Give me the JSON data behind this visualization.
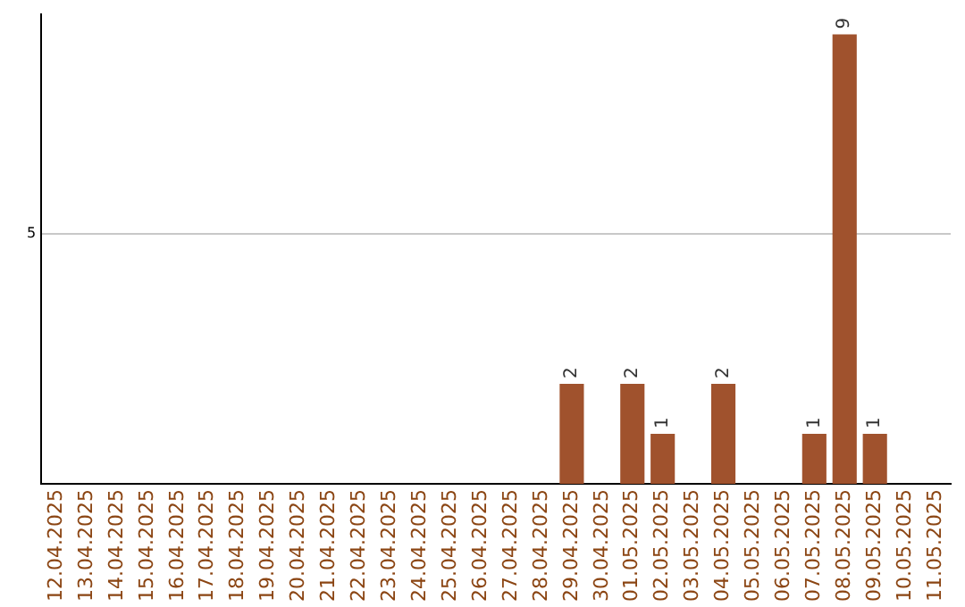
{
  "chart_data": {
    "type": "bar",
    "categories": [
      "12.04.2025",
      "13.04.2025",
      "14.04.2025",
      "15.04.2025",
      "16.04.2025",
      "17.04.2025",
      "18.04.2025",
      "19.04.2025",
      "20.04.2025",
      "21.04.2025",
      "22.04.2025",
      "23.04.2025",
      "24.04.2025",
      "25.04.2025",
      "26.04.2025",
      "27.04.2025",
      "28.04.2025",
      "29.04.2025",
      "30.04.2025",
      "01.05.2025",
      "02.05.2025",
      "03.05.2025",
      "04.05.2025",
      "05.05.2025",
      "06.05.2025",
      "07.05.2025",
      "08.05.2025",
      "09.05.2025",
      "10.05.2025",
      "11.05.2025"
    ],
    "values": [
      null,
      null,
      null,
      null,
      null,
      null,
      null,
      null,
      null,
      null,
      null,
      null,
      null,
      null,
      null,
      null,
      null,
      2,
      null,
      2,
      1,
      null,
      2,
      null,
      null,
      1,
      9,
      1,
      null,
      null
    ],
    "data_labels": true,
    "color": "#a0522d",
    "ylim": [
      0,
      9.4
    ],
    "yticks": [
      5
    ],
    "grid": "y",
    "legend": false
  }
}
